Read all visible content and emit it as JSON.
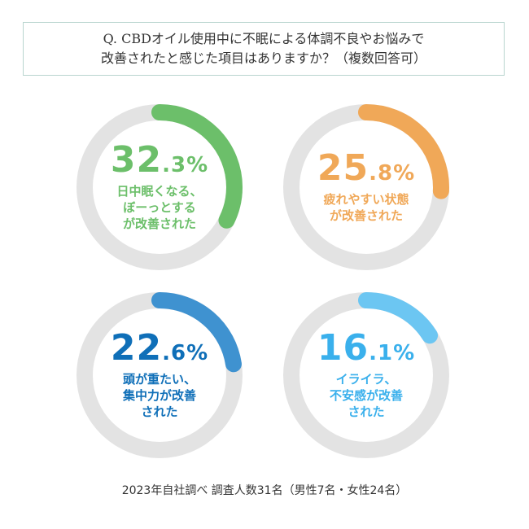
{
  "title": {
    "line1": "Q. CBDオイル使用中に不眠による体調不良やお悩みで",
    "line2": "改善されたと感じた項目はありますか？（複数回答可）"
  },
  "chart_data": {
    "type": "pie",
    "style": "donut",
    "track_color": "#e3e3e3",
    "items": [
      {
        "value": 32.3,
        "int": "32",
        "dec": ".3",
        "unit": "%",
        "lines": [
          "日中眠くなる、",
          "ぼーっとする",
          "が改善された"
        ],
        "color": "#6cbf6a"
      },
      {
        "value": 25.8,
        "int": "25",
        "dec": ".8",
        "unit": "%",
        "lines": [
          "疲れやすい状態",
          "が改善された"
        ],
        "color": "#f0a858"
      },
      {
        "value": 22.6,
        "int": "22",
        "dec": ".6",
        "unit": "%",
        "lines": [
          "頭が重たい、",
          "集中力が改善",
          "された"
        ],
        "color": "#3f92d0",
        "text_color": "#0f6fb8"
      },
      {
        "value": 16.1,
        "int": "16",
        "dec": ".1",
        "unit": "%",
        "lines": [
          "イライラ、",
          "不安感が改善",
          "された"
        ],
        "color": "#6cc6f2",
        "text_color": "#3ab0ec"
      }
    ]
  },
  "footer": "2023年自社調べ 調査人数31名（男性7名・女性24名）"
}
